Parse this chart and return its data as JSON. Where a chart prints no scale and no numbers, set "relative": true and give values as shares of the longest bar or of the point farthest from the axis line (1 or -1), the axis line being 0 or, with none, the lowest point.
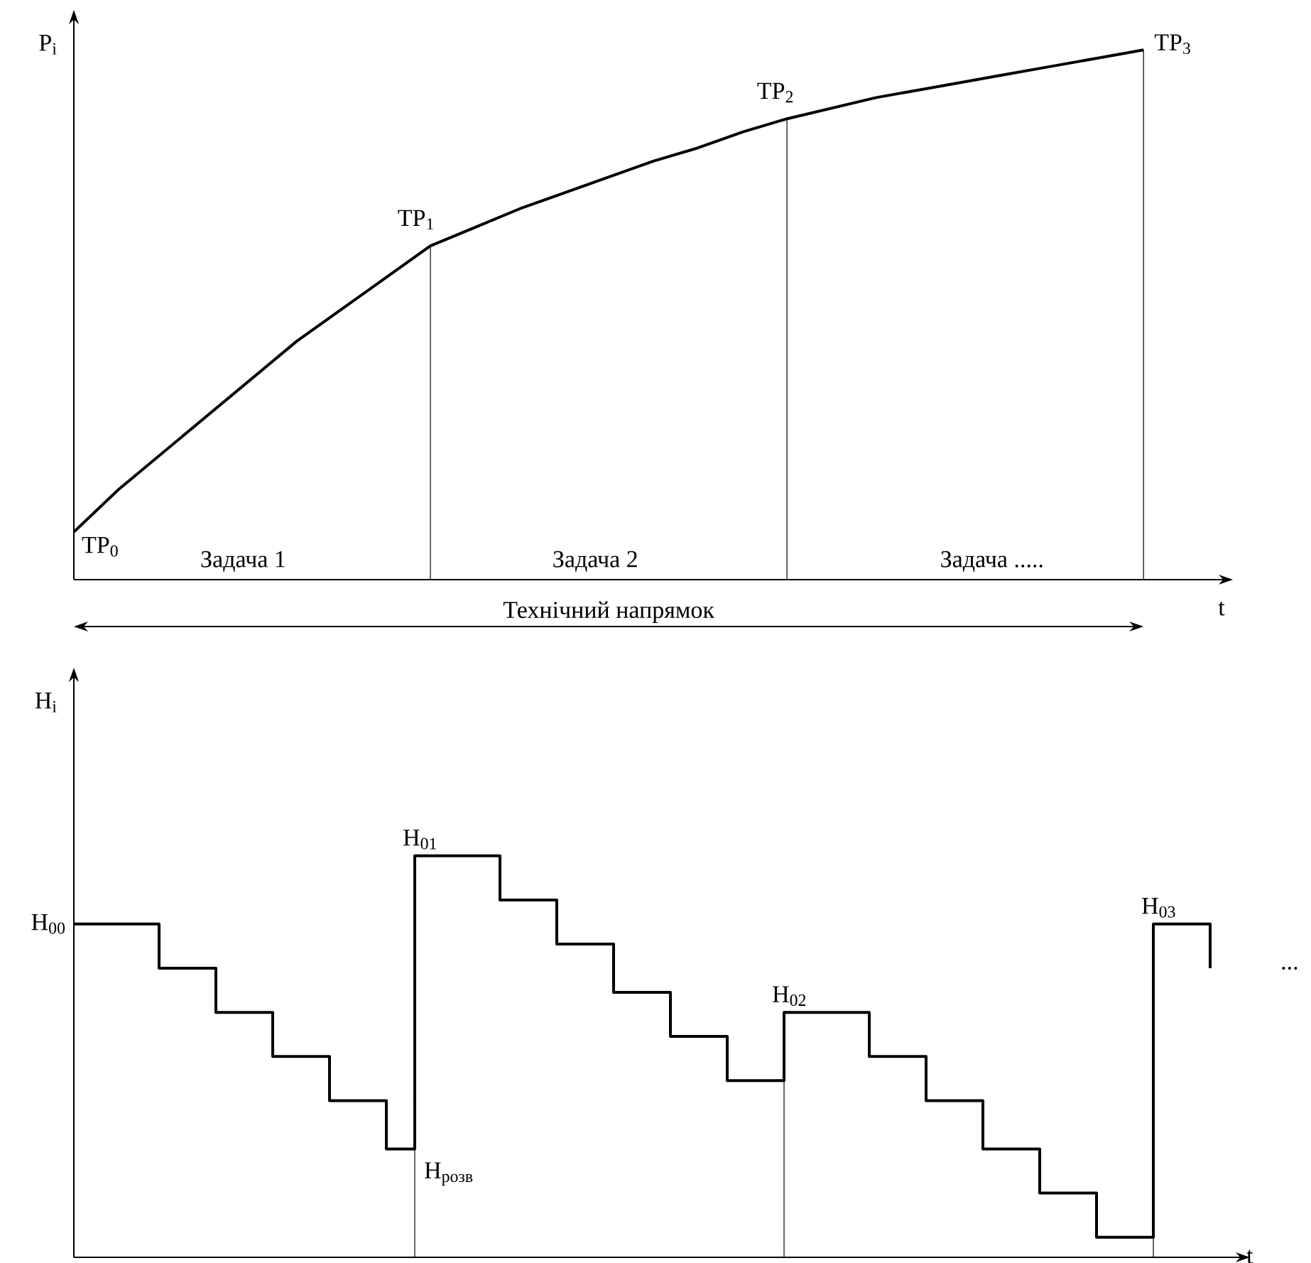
{
  "chart_data": [
    {
      "type": "line",
      "relative": true,
      "xlabel": "t",
      "ylabel": "P$_{i}$",
      "categories": [
        null,
        null,
        null,
        null,
        null,
        null,
        null,
        null,
        null,
        null,
        null,
        null,
        null,
        null,
        null,
        null,
        null,
        null,
        null,
        null,
        null,
        null,
        null,
        null,
        null
      ],
      "series": [
        {
          "color": "#000000",
          "values": [
            0.09,
            0.17,
            0.24,
            0.31,
            0.38,
            0.45,
            0.51,
            0.57,
            0.63,
            0.665,
            0.7,
            0.73,
            0.76,
            0.79,
            0.815,
            0.845,
            0.87,
            0.89,
            0.91,
            0.925,
            0.94,
            0.955,
            0.97,
            0.985,
            1.0
          ]
        }
      ],
      "annotations": [
        "TP$_{0}$",
        "TP$_{1}$",
        "TP$_{2}$",
        "TP$_{3}$",
        "Задача 1",
        "Задача 2",
        "Задача .....",
        "Технічний напрямок"
      ]
    },
    {
      "type": "step",
      "relative": true,
      "xlabel": "t",
      "ylabel": "H$_{i}$",
      "categories": [
        null,
        null,
        null,
        null,
        null,
        null,
        null,
        null,
        null,
        null,
        null,
        null,
        null,
        null,
        null,
        null,
        null,
        null,
        null,
        null,
        null,
        null,
        null,
        null,
        null,
        null,
        null,
        null,
        null,
        null,
        null,
        null,
        null,
        null,
        null,
        null,
        null,
        null,
        null,
        null,
        null
      ],
      "series": [
        {
          "color": "#000000",
          "values": [
            0.83,
            0.83,
            0.83,
            0.72,
            0.72,
            0.61,
            0.61,
            0.5,
            0.5,
            0.39,
            0.39,
            0.27,
            1.0,
            1.0,
            1.0,
            0.89,
            0.89,
            0.78,
            0.78,
            0.66,
            0.66,
            0.55,
            0.55,
            0.44,
            0.44,
            0.61,
            0.61,
            0.61,
            0.5,
            0.5,
            0.39,
            0.39,
            0.27,
            0.27,
            0.16,
            0.16,
            0.05,
            0.05,
            0.83,
            0.83,
            0.72
          ]
        }
      ],
      "annotations": [
        "H$_{00}$",
        "H$_{01}$",
        "H$_{розв}$",
        "H$_{02}$",
        "H$_{03}$",
        "..."
      ]
    }
  ]
}
